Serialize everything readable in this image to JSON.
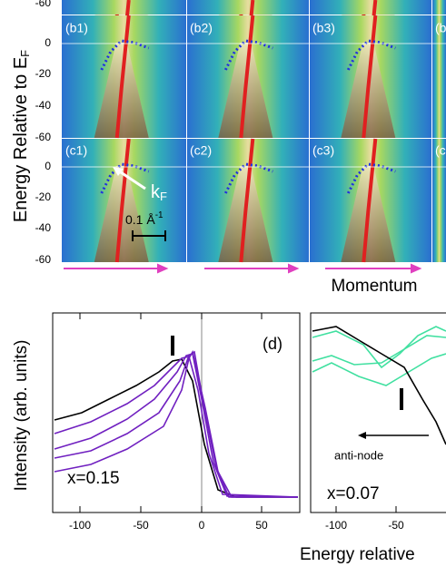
{
  "top": {
    "y_axis_title": "Energy Relative to E",
    "y_axis_title_sub": "F",
    "y_ticks": [
      "-60",
      "0",
      "-20",
      "-40",
      "-60",
      "0",
      "-20",
      "-40",
      "-60"
    ],
    "panel_labels": [
      "(b1)",
      "(b2)",
      "(b3)",
      "(b",
      "(c1)",
      "(c2)",
      "(c3)",
      "(c"
    ],
    "kf_label": "k",
    "kf_sub": "F",
    "scale_label": "0.1 Å",
    "scale_sup": "-1",
    "x_axis_title": "Momentum"
  },
  "bottom": {
    "y_axis_title": "Intensity (arb. units)",
    "left_panel_label": "(d)",
    "left_doping": "x=0.15",
    "right_doping": "x=0.07",
    "right_annotation": "anti-node",
    "left_x_ticks": [
      "-100",
      "-50",
      "0",
      "50"
    ],
    "right_x_ticks": [
      "-100",
      "-50"
    ],
    "x_axis_title": "Energy relative"
  }
}
